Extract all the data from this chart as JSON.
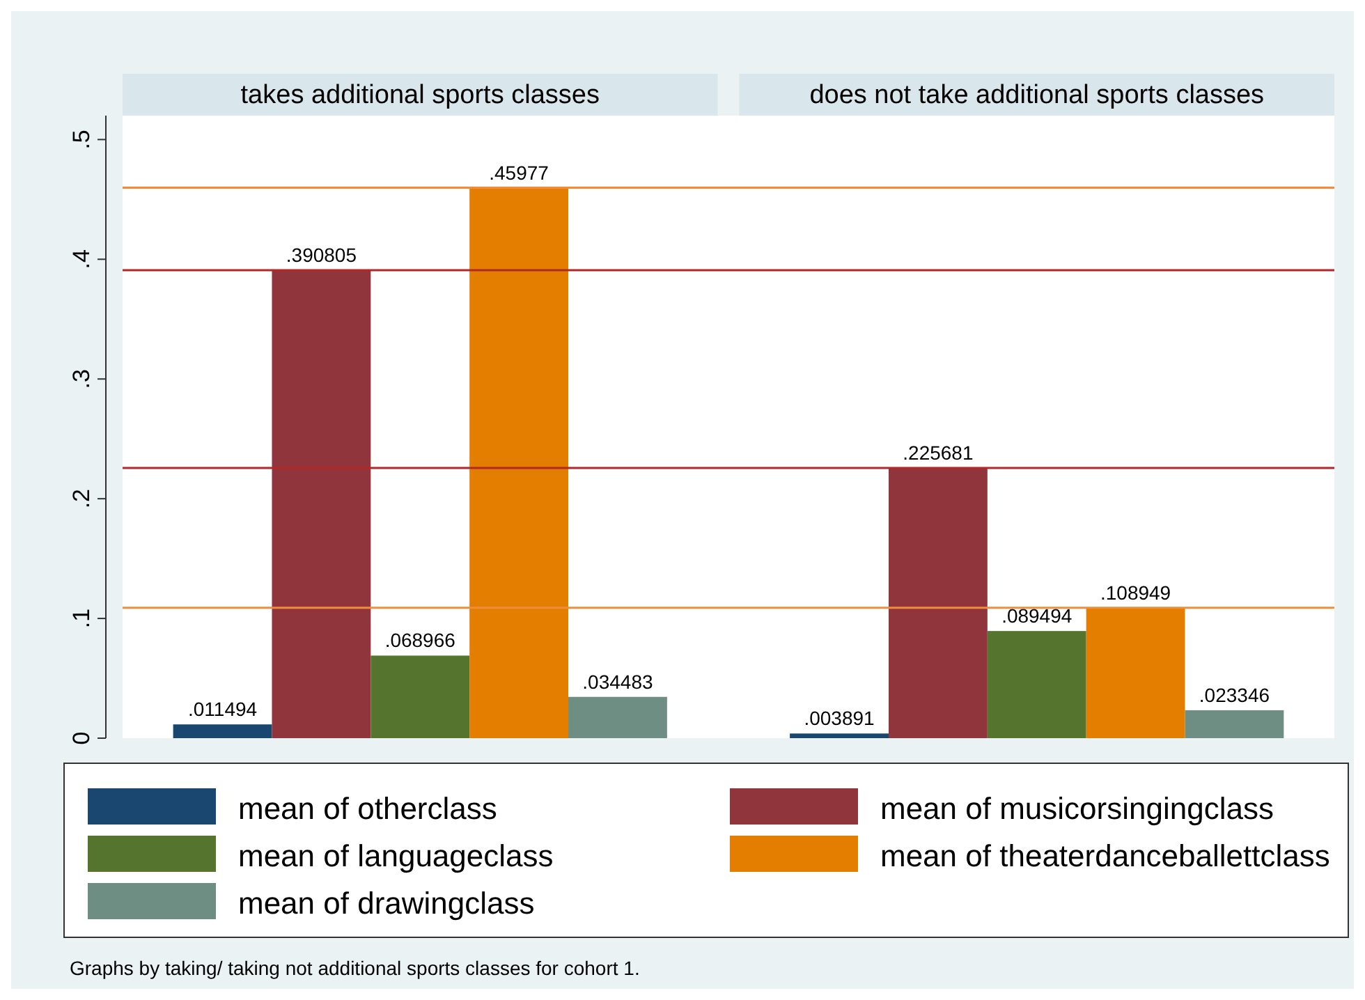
{
  "chart_data": {
    "type": "bar",
    "categories": [
      "takes additional sports classes",
      "does not take additional sports classes"
    ],
    "series": [
      {
        "name": "mean of otherclass",
        "color": "#1a476f",
        "values": [
          0.011494,
          0.003891
        ],
        "value_labels": [
          ".011494",
          ".003891"
        ]
      },
      {
        "name": "mean of musicorsingingclass",
        "color": "#90353b",
        "values": [
          0.390805,
          0.225681
        ],
        "value_labels": [
          ".390805",
          ".225681"
        ]
      },
      {
        "name": "mean of languageclass",
        "color": "#55752f",
        "values": [
          0.068966,
          0.089494
        ],
        "value_labels": [
          ".068966",
          ".089494"
        ]
      },
      {
        "name": "mean of theaterdanceballettclass",
        "color": "#e37e00",
        "values": [
          0.45977,
          0.108949
        ],
        "value_labels": [
          ".45977",
          ".108949"
        ]
      },
      {
        "name": "mean of drawingclass",
        "color": "#6e8e84",
        "values": [
          0.034483,
          0.023346
        ],
        "value_labels": [
          ".034483",
          ".023346"
        ]
      }
    ],
    "ylim": [
      0,
      0.52
    ],
    "yticks": [
      0,
      {
        "value": 0.1,
        "label": ".1"
      },
      {
        "value": 0.2,
        "label": ".2"
      },
      {
        "value": 0.3,
        "label": ".3"
      },
      {
        "value": 0.4,
        "label": ".4"
      },
      {
        "value": 0.5,
        "label": ".5"
      }
    ],
    "legend": "bottom",
    "ref_lines": [
      {
        "axis": "y",
        "value": 0.45977,
        "color": "#f08c3c"
      },
      {
        "axis": "y",
        "value": 0.390805,
        "color": "#b0282a"
      },
      {
        "axis": "y",
        "value": 0.225681,
        "color": "#b0282a"
      },
      {
        "axis": "y",
        "value": 0.108949,
        "color": "#f08c3c"
      }
    ],
    "annotations": [
      "Graphs by taking/ taking not additional sports classes for cohort 1."
    ]
  }
}
